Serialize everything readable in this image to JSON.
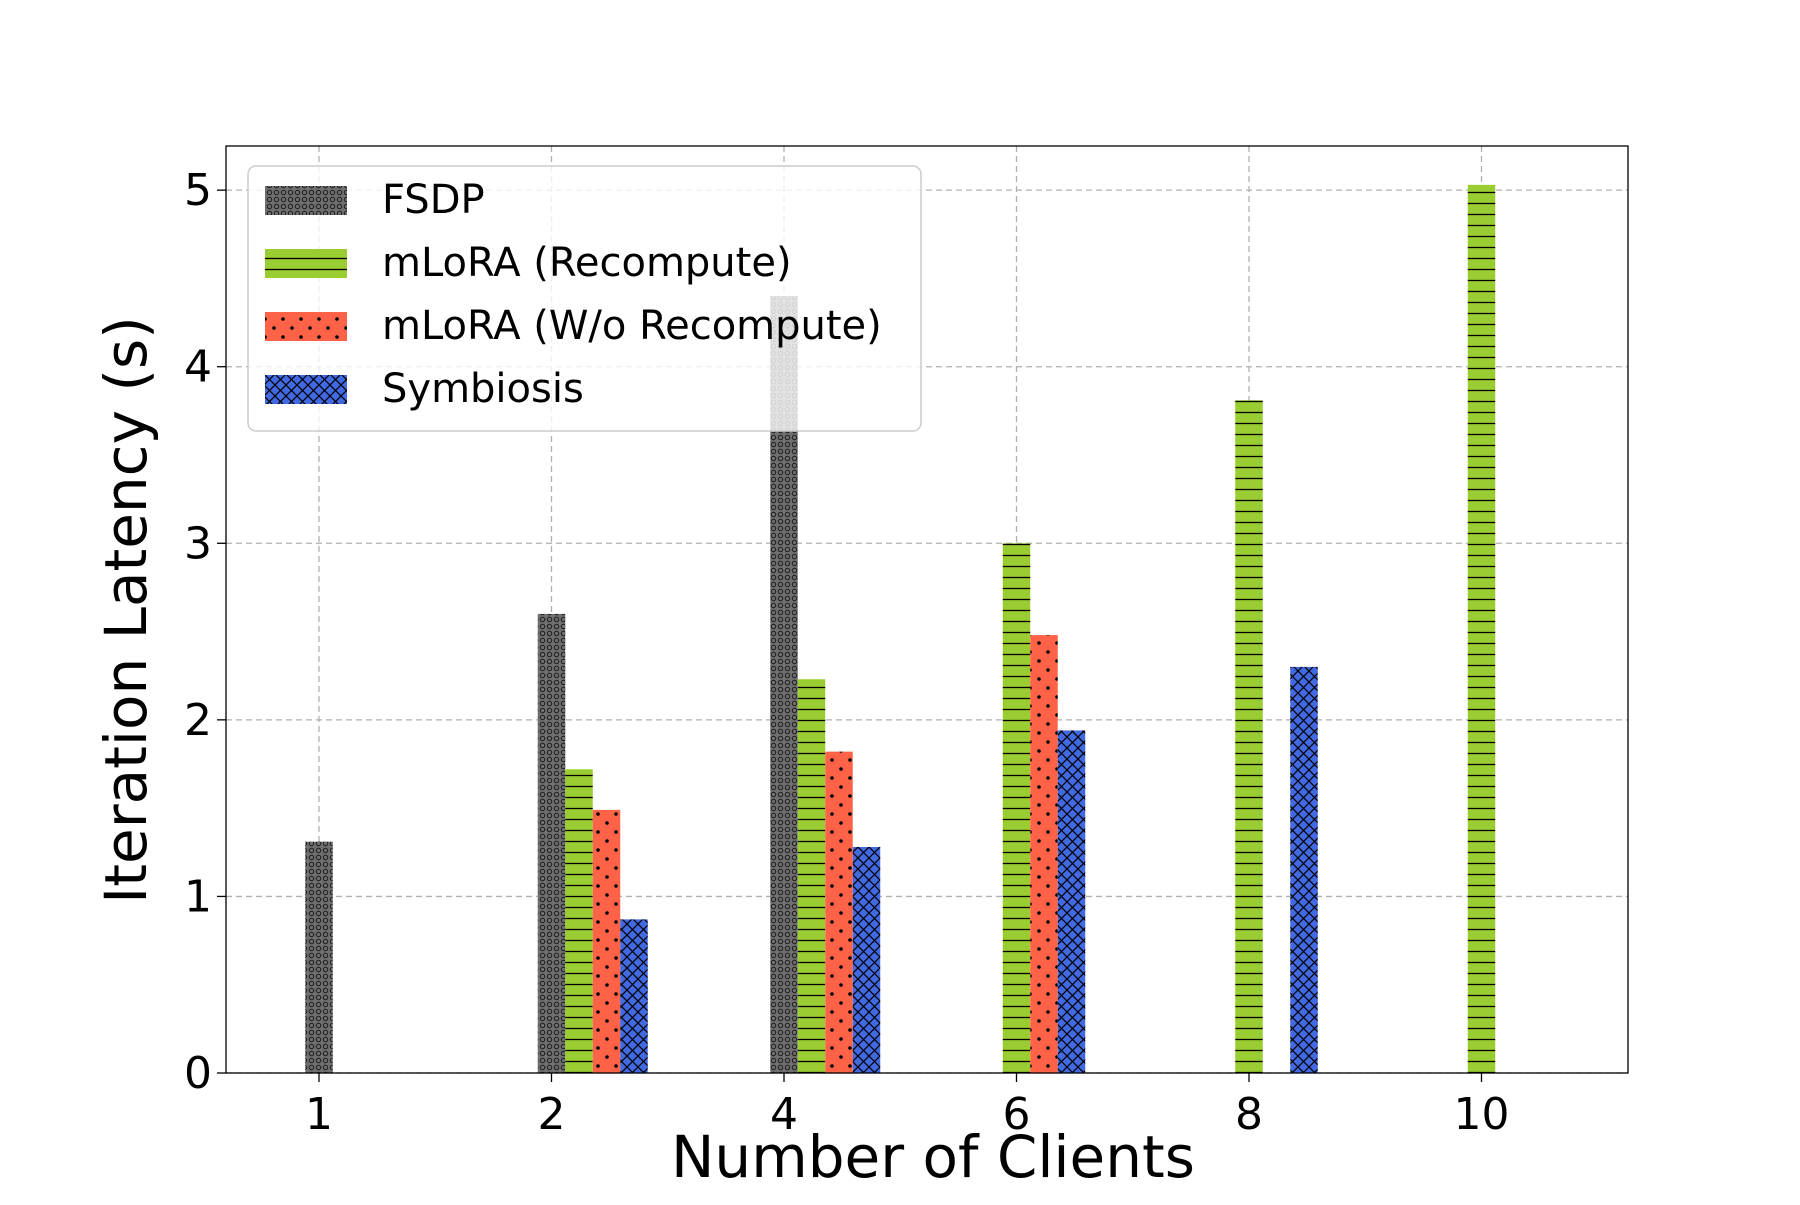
{
  "chart_data": {
    "type": "bar",
    "title": "",
    "xlabel": "Number of Clients",
    "ylabel": "Iteration Latency (s)",
    "categories": [
      "1",
      "2",
      "4",
      "6",
      "8",
      "10"
    ],
    "ylim": [
      0,
      5.25
    ],
    "yticks": [
      0,
      1,
      2,
      3,
      4,
      5
    ],
    "grid": true,
    "legend_position": "top-left",
    "series": [
      {
        "name": "FSDP",
        "color": "#6e6e6e",
        "pattern": "small-circles",
        "values": [
          1.31,
          2.6,
          4.4,
          null,
          null,
          null
        ]
      },
      {
        "name": "mLoRA (Recompute)",
        "color": "#9acd32",
        "pattern": "horizontal-lines",
        "values": [
          null,
          1.72,
          2.23,
          3.0,
          3.81,
          5.03
        ]
      },
      {
        "name": "mLoRA (W/o Recompute)",
        "color": "#ff6347",
        "pattern": "dots",
        "values": [
          null,
          1.49,
          1.82,
          2.48,
          null,
          null
        ]
      },
      {
        "name": "Symbiosis",
        "color": "#4169e1",
        "pattern": "cross-hatch",
        "values": [
          null,
          0.87,
          1.28,
          1.94,
          2.3,
          null
        ]
      }
    ],
    "slot_positions": [
      [
        0,
        null,
        null,
        null
      ],
      [
        0,
        1,
        2,
        3
      ],
      [
        0,
        1,
        2,
        3
      ],
      [
        null,
        0,
        1,
        2
      ],
      [
        null,
        0,
        null,
        2
      ],
      [
        null,
        0,
        null,
        null
      ]
    ]
  }
}
